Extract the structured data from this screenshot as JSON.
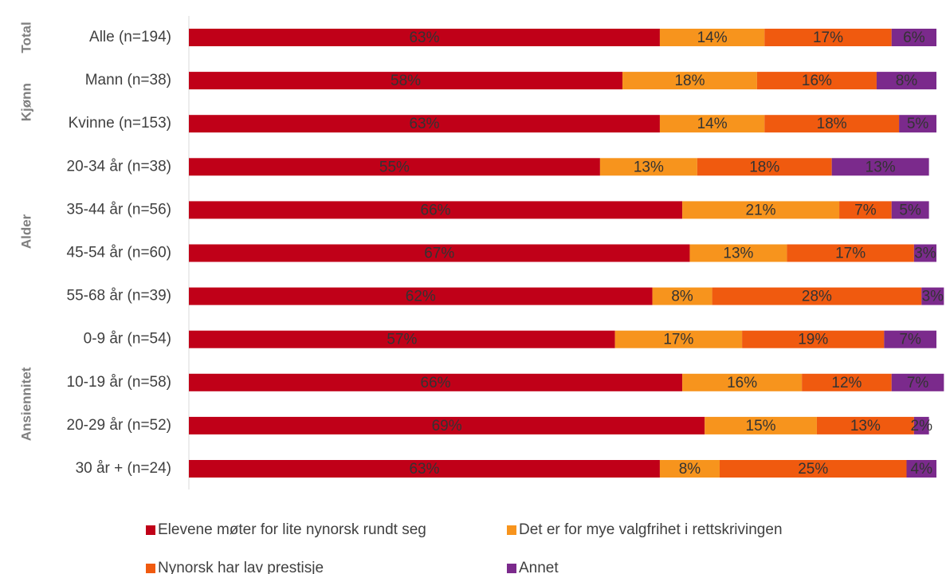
{
  "chart_data": {
    "type": "stacked_bar_horizontal",
    "categories": [
      "Alle (n=194)",
      "Mann (n=38)",
      "Kvinne (n=153)",
      "20-34 år (n=38)",
      "35-44 år (n=56)",
      "45-54 år (n=60)",
      "55-68 år (n=39)",
      "0-9 år (n=54)",
      "10-19 år (n=58)",
      "20-29 år (n=52)",
      "30 år + (n=24)"
    ],
    "groups": [
      {
        "label": "Total",
        "size": 1
      },
      {
        "label": "Kjønn",
        "size": 2
      },
      {
        "label": "Alder",
        "size": 4
      },
      {
        "label": "Ansiennitet",
        "size": 4
      }
    ],
    "series": [
      {
        "name": "Elevene møter for lite nynorsk rundt seg",
        "color": "#c00018",
        "label_color": "#ffffff",
        "values": [
          63,
          58,
          63,
          55,
          66,
          67,
          62,
          57,
          66,
          69,
          63
        ],
        "value_labels": [
          "63%",
          "58%",
          "63%",
          "55%",
          "66%",
          "67%",
          "62%",
          "57%",
          "66%",
          "69%",
          "63%"
        ]
      },
      {
        "name": "Det er for mye valgfrihet i rettskrivingen",
        "color": "#f7941d",
        "label_color": "#404040",
        "values": [
          14,
          18,
          14,
          13,
          21,
          13,
          8,
          17,
          16,
          15,
          8
        ],
        "value_labels": [
          "14%",
          "18%",
          "14%",
          "13%",
          "21%",
          "13%",
          "8%",
          "17%",
          "16%",
          "15%",
          "8%"
        ]
      },
      {
        "name": "Nynorsk har lav prestisje",
        "color": "#f05a0f",
        "label_color": "#404040",
        "values": [
          17,
          16,
          18,
          18,
          7,
          17,
          28,
          19,
          12,
          13,
          25
        ],
        "value_labels": [
          "17%",
          "16%",
          "18%",
          "18%",
          "7%",
          "17%",
          "28%",
          "19%",
          "12%",
          "13%",
          "25%"
        ]
      },
      {
        "name": "Annet",
        "color": "#7b2a8c",
        "label_color": "#ffffff",
        "values": [
          6,
          8,
          5,
          13,
          5,
          3,
          3,
          7,
          7,
          2,
          4
        ],
        "value_labels": [
          "6%",
          "8%",
          "5%",
          "13%",
          "5%",
          "3%",
          "3%",
          "7%",
          "7%",
          "2%",
          "4%"
        ]
      }
    ],
    "xlim": [
      0,
      100
    ]
  }
}
